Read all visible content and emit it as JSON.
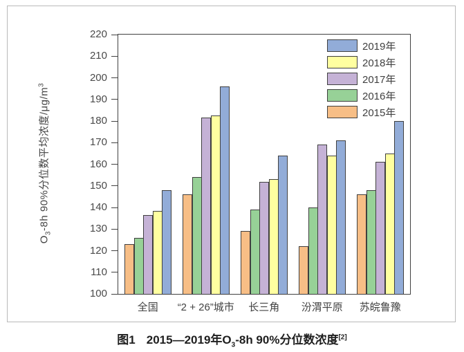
{
  "figure": {
    "caption": {
      "prefix": "图1",
      "main1": "2015—2019年O",
      "sub1": "3",
      "main2": "-8h 90%分位数浓度",
      "sup1": "[2]"
    }
  },
  "chart_data": {
    "type": "bar",
    "categories": [
      "全国",
      "“2 + 26”城市",
      "长三角",
      "汾渭平原",
      "苏皖鲁豫"
    ],
    "series": [
      {
        "name": "2015年",
        "color": "#F7BE86",
        "values": [
          123,
          146,
          129,
          122,
          146
        ]
      },
      {
        "name": "2016年",
        "color": "#97D197",
        "values": [
          126,
          154,
          139,
          140,
          148
        ]
      },
      {
        "name": "2017年",
        "color": "#C5B2D6",
        "values": [
          136.5,
          181.5,
          152,
          169,
          161
        ]
      },
      {
        "name": "2018年",
        "color": "#FFFFA0",
        "values": [
          138.5,
          182.5,
          153,
          164,
          165
        ]
      },
      {
        "name": "2019年",
        "color": "#92ACD8",
        "values": [
          148,
          196,
          164,
          171,
          180
        ]
      }
    ],
    "legend_order": [
      "2019年",
      "2018年",
      "2017年",
      "2016年",
      "2015年"
    ],
    "legend_position": "top-right",
    "ylabel": {
      "pre": "O",
      "sub": "3",
      "mid": "-8h 90%分位数平均浓度/μg/m",
      "sup": "3"
    },
    "ylim": [
      100,
      220
    ],
    "ytick_step": 10,
    "grid": false,
    "axis_color": "#404040",
    "bar_border_color": "#3f3f3f",
    "text_color": "#4a4a4a"
  }
}
